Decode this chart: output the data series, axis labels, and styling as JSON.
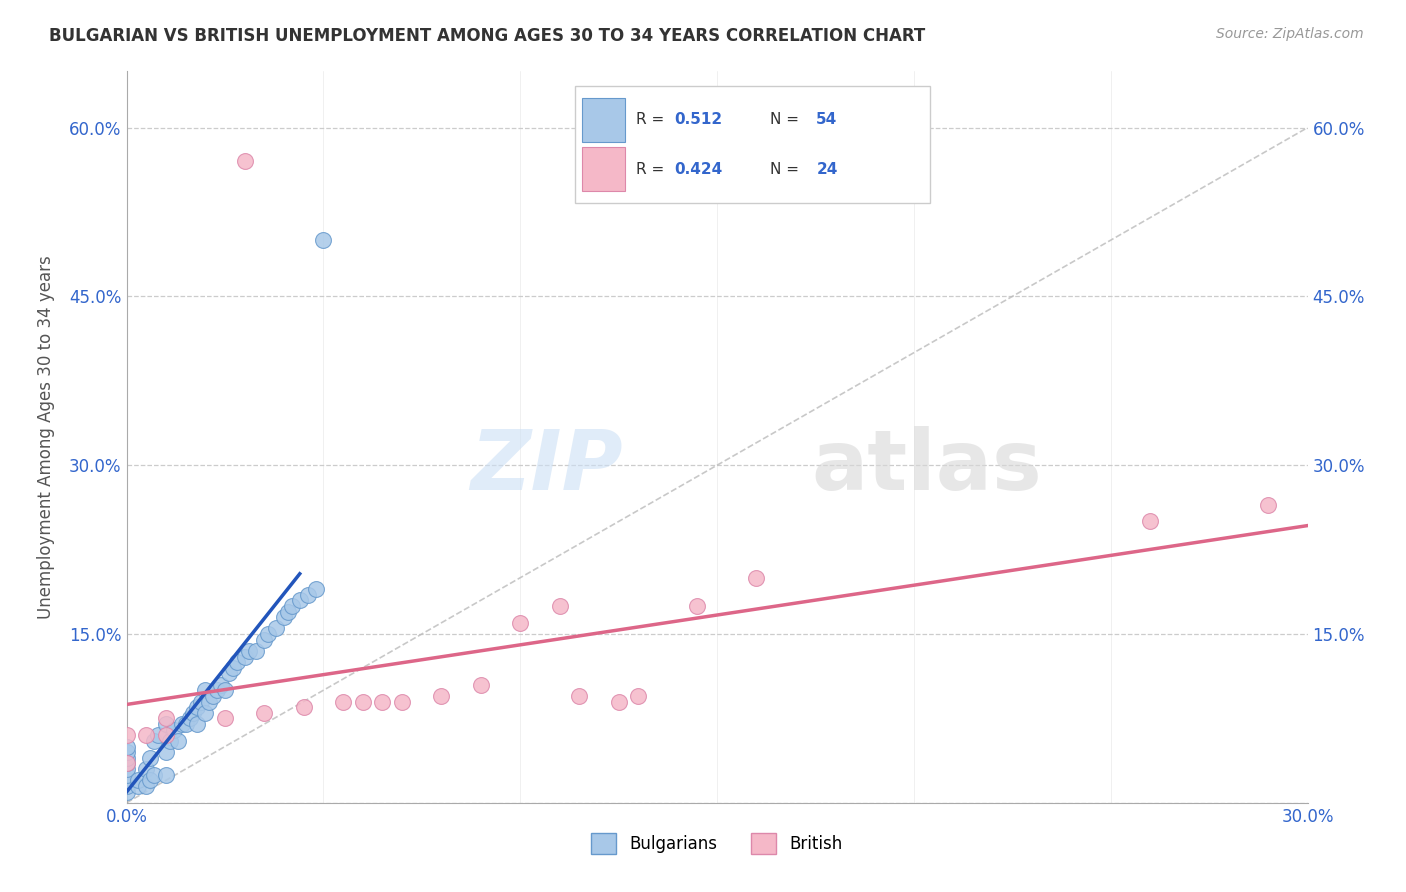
{
  "title": "BULGARIAN VS BRITISH UNEMPLOYMENT AMONG AGES 30 TO 34 YEARS CORRELATION CHART",
  "source": "Source: ZipAtlas.com",
  "ylabel": "Unemployment Among Ages 30 to 34 years",
  "xlim": [
    0,
    0.3
  ],
  "ylim": [
    0,
    0.65
  ],
  "x_ticks": [
    0.0,
    0.05,
    0.1,
    0.15,
    0.2,
    0.25,
    0.3
  ],
  "y_ticks": [
    0.0,
    0.15,
    0.3,
    0.45,
    0.6
  ],
  "bulgarian_color": "#a8c8e8",
  "british_color": "#f5b8c8",
  "bulgarian_edge": "#6699cc",
  "british_edge": "#dd88aa",
  "trend_blue_color": "#2255bb",
  "trend_pink_color": "#dd6688",
  "diag_color": "#bbbbbb",
  "R_bulgarian": 0.512,
  "N_bulgarian": 54,
  "R_british": 0.424,
  "N_british": 24,
  "legend_label_1": "Bulgarians",
  "legend_label_2": "British",
  "watermark_zip": "ZIP",
  "watermark_atlas": "atlas",
  "bg_color": "#ffffff",
  "grid_color": "#cccccc",
  "bulg_x": [
    0.0,
    0.0,
    0.0,
    0.0,
    0.0,
    0.0,
    0.0,
    0.0,
    0.0,
    0.003,
    0.003,
    0.005,
    0.005,
    0.006,
    0.006,
    0.007,
    0.007,
    0.008,
    0.01,
    0.01,
    0.01,
    0.011,
    0.012,
    0.013,
    0.014,
    0.015,
    0.016,
    0.017,
    0.018,
    0.018,
    0.019,
    0.02,
    0.02,
    0.021,
    0.022,
    0.023,
    0.024,
    0.025,
    0.026,
    0.027,
    0.028,
    0.03,
    0.031,
    0.033,
    0.035,
    0.036,
    0.038,
    0.04,
    0.041,
    0.042,
    0.044,
    0.046,
    0.048,
    0.05
  ],
  "bulg_y": [
    0.01,
    0.015,
    0.02,
    0.025,
    0.03,
    0.035,
    0.04,
    0.045,
    0.05,
    0.015,
    0.02,
    0.015,
    0.03,
    0.02,
    0.04,
    0.025,
    0.055,
    0.06,
    0.025,
    0.045,
    0.07,
    0.055,
    0.065,
    0.055,
    0.07,
    0.07,
    0.075,
    0.08,
    0.07,
    0.085,
    0.09,
    0.08,
    0.1,
    0.09,
    0.095,
    0.1,
    0.105,
    0.1,
    0.115,
    0.12,
    0.125,
    0.13,
    0.135,
    0.135,
    0.145,
    0.15,
    0.155,
    0.165,
    0.17,
    0.175,
    0.18,
    0.185,
    0.19,
    0.5
  ],
  "brit_x": [
    0.0,
    0.0,
    0.005,
    0.01,
    0.01,
    0.025,
    0.03,
    0.035,
    0.045,
    0.055,
    0.06,
    0.065,
    0.07,
    0.08,
    0.09,
    0.1,
    0.11,
    0.115,
    0.125,
    0.13,
    0.145,
    0.16,
    0.26,
    0.29
  ],
  "brit_y": [
    0.035,
    0.06,
    0.06,
    0.06,
    0.075,
    0.075,
    0.57,
    0.08,
    0.085,
    0.09,
    0.09,
    0.09,
    0.09,
    0.095,
    0.105,
    0.16,
    0.175,
    0.095,
    0.09,
    0.095,
    0.175,
    0.2,
    0.25,
    0.265
  ],
  "bulg_trend_x": [
    0.0,
    0.044
  ],
  "brit_trend_x": [
    0.0,
    0.3
  ]
}
